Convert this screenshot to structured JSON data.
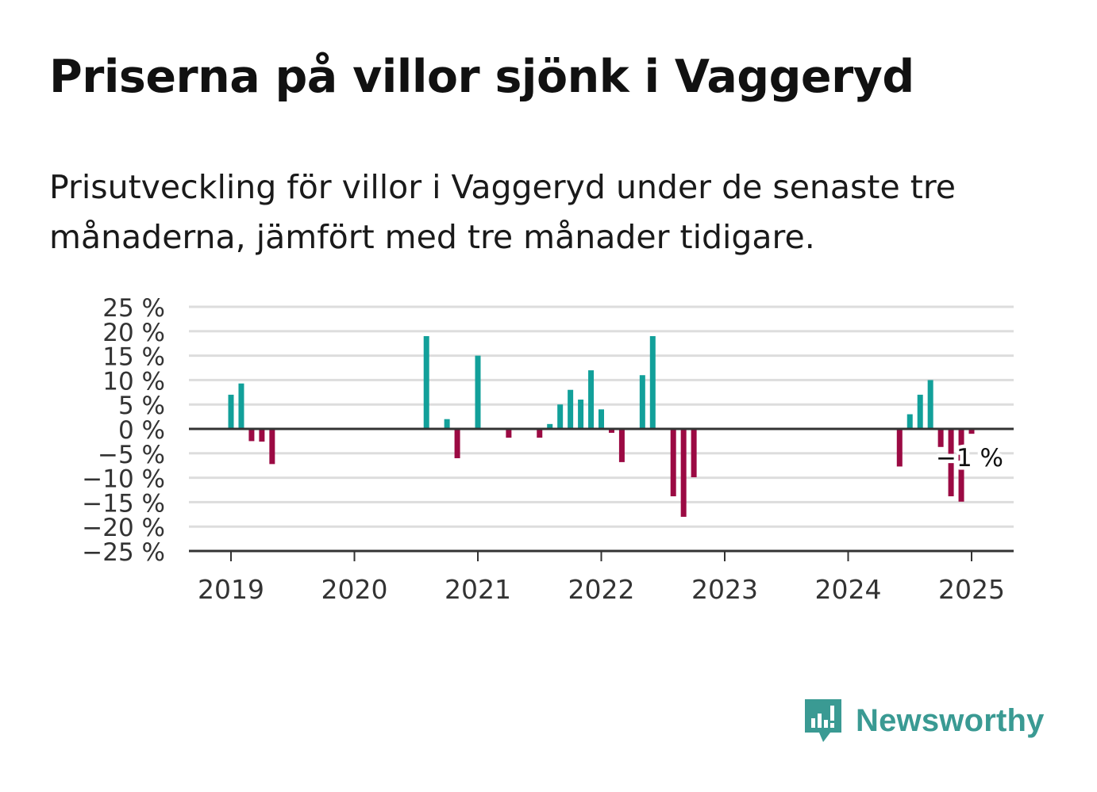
{
  "header": {
    "title": "Priserna på villor sjönk i Vaggeryd",
    "subtitle": "Prisutveckling för villor i Vaggeryd under de senaste tre månaderna, jämfört med tre månader tidigare."
  },
  "brand": {
    "name": "Newsworthy",
    "color": "#3a9a93"
  },
  "chart_data": {
    "type": "bar",
    "y_unit": "%",
    "ylim": [
      -25,
      25
    ],
    "y_ticks": [
      25,
      20,
      15,
      10,
      5,
      0,
      -5,
      -10,
      -15,
      -20,
      -25
    ],
    "y_tick_labels": [
      "25 %",
      "20 %",
      "15 %",
      "10 %",
      "5 %",
      "0 %",
      "−5 %",
      "−10 %",
      "−15 %",
      "−20 %",
      "−25 %"
    ],
    "x_ticks": [
      "2019",
      "2020",
      "2021",
      "2022",
      "2023",
      "2024",
      "2025"
    ],
    "grid": true,
    "colors": {
      "positive": "#12a09a",
      "negative": "#9b0a43",
      "grid": "#dddddd",
      "axis": "#333333"
    },
    "series": [
      {
        "values": [
          {
            "x": "2019-01",
            "y": 7
          },
          {
            "x": "2019-02",
            "y": 9.3
          },
          {
            "x": "2019-03",
            "y": -2.5
          },
          {
            "x": "2019-04",
            "y": -2.6
          },
          {
            "x": "2019-05",
            "y": -7.2
          },
          {
            "x": "2020-08",
            "y": 19
          },
          {
            "x": "2020-10",
            "y": 2
          },
          {
            "x": "2020-11",
            "y": -6
          },
          {
            "x": "2021-01",
            "y": 15
          },
          {
            "x": "2021-04",
            "y": -1.8
          },
          {
            "x": "2021-07",
            "y": -1.8
          },
          {
            "x": "2021-08",
            "y": 1
          },
          {
            "x": "2021-09",
            "y": 5
          },
          {
            "x": "2021-10",
            "y": 8
          },
          {
            "x": "2021-11",
            "y": 6
          },
          {
            "x": "2021-12",
            "y": 12
          },
          {
            "x": "2022-01",
            "y": 4
          },
          {
            "x": "2022-02",
            "y": -0.8
          },
          {
            "x": "2022-03",
            "y": -6.8
          },
          {
            "x": "2022-05",
            "y": 11
          },
          {
            "x": "2022-06",
            "y": 19
          },
          {
            "x": "2022-08",
            "y": -13.8
          },
          {
            "x": "2022-09",
            "y": -18
          },
          {
            "x": "2022-10",
            "y": -9.9
          },
          {
            "x": "2024-06",
            "y": -7.7
          },
          {
            "x": "2024-07",
            "y": 3
          },
          {
            "x": "2024-08",
            "y": 7
          },
          {
            "x": "2024-09",
            "y": 10
          },
          {
            "x": "2024-10",
            "y": -3.7
          },
          {
            "x": "2024-11",
            "y": -13.8
          },
          {
            "x": "2024-12",
            "y": -14.9
          },
          {
            "x": "2025-01",
            "y": -1
          }
        ]
      }
    ],
    "annotation": {
      "x": "2025-01",
      "text": "−1 %"
    }
  }
}
